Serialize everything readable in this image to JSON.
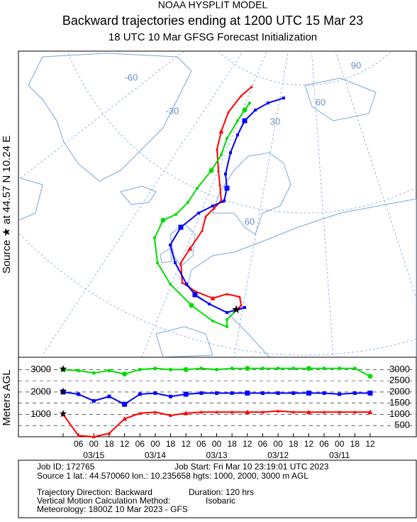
{
  "header": {
    "title": "NOAA HYSPLIT MODEL",
    "subtitle": "Backward trajectories ending at 1200 UTC 15 Mar 23",
    "line3": "18 UTC 10 Mar    GFSG  Forecast Initialization"
  },
  "map": {
    "source_label": "Source ★ at  44.57 N  10.24 E",
    "grid_labels": [
      "-60",
      "-30",
      "90",
      "60",
      "30",
      "60"
    ]
  },
  "chart_data": {
    "type": "line",
    "ylabel": "Meters AGL",
    "categories": [
      null,
      "06",
      "00",
      "18",
      "12",
      "06",
      "00",
      "18",
      "12",
      "06",
      "00",
      "18",
      "12",
      "06",
      "00",
      "18",
      "12",
      "06",
      "00",
      "18",
      "12"
    ],
    "dates": [
      "03/15",
      "03/14",
      "03/13",
      "03/12",
      "03/11"
    ],
    "ylim": [
      0,
      3550
    ],
    "yticks": [
      3000,
      2500,
      2000,
      1500,
      1000,
      500
    ],
    "left_ticks": [
      1000,
      2000,
      3000
    ],
    "series": [
      {
        "name": "1000 m",
        "color": "#ff0000",
        "values": [
          1000,
          50,
          0,
          150,
          800,
          1050,
          1100,
          950,
          1050,
          1100,
          1100,
          1100,
          1100,
          1100,
          1150,
          1100,
          1100,
          1100,
          1100,
          1100,
          1100
        ]
      },
      {
        "name": "2000 m",
        "color": "#0000ff",
        "values": [
          2000,
          1900,
          1600,
          1800,
          1450,
          1900,
          1950,
          1800,
          1900,
          1950,
          1950,
          1950,
          1950,
          1950,
          1950,
          1950,
          1950,
          1950,
          1900,
          1950,
          1950
        ]
      },
      {
        "name": "3000 m",
        "color": "#00dd00",
        "values": [
          3000,
          2950,
          2850,
          2950,
          2800,
          3000,
          3050,
          3000,
          3000,
          3050,
          3000,
          3050,
          3050,
          3050,
          3050,
          3050,
          3050,
          3050,
          3050,
          3050,
          2700
        ]
      }
    ]
  },
  "footer": {
    "job_id": "Job ID: 172765",
    "job_start": "Job Start: Fri Mar 10 23:19:01 UTC 2023",
    "source": "Source 1 lat.: 44.570060  lon.: 10.235658  hgts: 1000, 2000, 3000 m AGL",
    "direction": "Trajectory Direction: Backward",
    "duration": "Duration: 120 hrs",
    "vertical": "Vertical Motion Calculation Method:",
    "method": "Isobaric",
    "meteorology": "Meteorology: 1800Z 10 Mar 2023 - GFS"
  }
}
